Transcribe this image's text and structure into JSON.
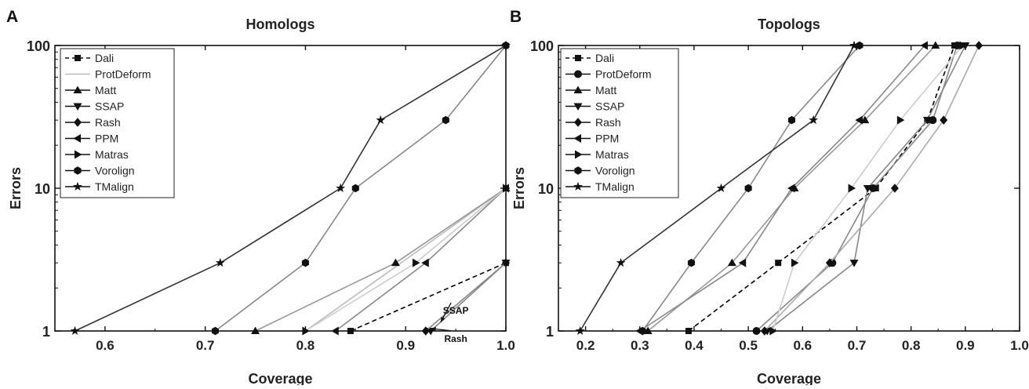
{
  "chart_data": [
    {
      "type": "line",
      "panel_label": "A",
      "title": "Homologs",
      "xlabel": "Coverage",
      "ylabel": "Errors",
      "xlim": [
        0.55,
        1.0
      ],
      "ylim": [
        1,
        100
      ],
      "yscale": "log",
      "xticks": [
        0.6,
        0.7,
        0.8,
        0.9,
        1.0
      ],
      "xtick_labels": [
        "0.6",
        "0.7",
        "0.8",
        "0.9",
        "1.0"
      ],
      "yticks": [
        1,
        10,
        100
      ],
      "ytick_labels": [
        "1",
        "10",
        "100"
      ],
      "grid": false,
      "legend_position": "top-left",
      "annotations": [
        {
          "text": "SSAP",
          "x": 0.95,
          "y": 1.32,
          "arrow_to": [
            0.935,
            1.15
          ]
        },
        {
          "text": "Rash",
          "x": 0.95,
          "y": 0.84,
          "arrow_to": [
            0.925,
            1.04
          ]
        }
      ],
      "series": [
        {
          "name": "Dali",
          "marker": "square",
          "dash": "dashed",
          "color": "#000000",
          "x": [
            0.845,
            1.0
          ],
          "y": [
            1,
            3
          ]
        },
        {
          "name": "ProtDeform",
          "marker": "none",
          "dash": "solid",
          "color": "#bbbbbb",
          "x": [
            0.8,
            1.0
          ],
          "y": [
            1,
            10
          ]
        },
        {
          "name": "Matt",
          "marker": "triangle-up",
          "dash": "solid",
          "color": "#999999",
          "x": [
            0.75,
            0.89,
            1.0
          ],
          "y": [
            1,
            3,
            10
          ]
        },
        {
          "name": "SSAP",
          "marker": "triangle-down",
          "dash": "solid",
          "color": "#888888",
          "x": [
            0.925,
            1.0
          ],
          "y": [
            1,
            3
          ]
        },
        {
          "name": "Rash",
          "marker": "diamond",
          "dash": "solid",
          "color": "#888888",
          "x": [
            0.92,
            1.0
          ],
          "y": [
            1,
            3
          ]
        },
        {
          "name": "PPM",
          "marker": "triangle-left",
          "dash": "solid",
          "color": "#888888",
          "x": [
            0.83,
            0.92,
            1.0
          ],
          "y": [
            1,
            3,
            10
          ]
        },
        {
          "name": "Matras",
          "marker": "triangle-right",
          "dash": "solid",
          "color": "#cccccc",
          "x": [
            0.8,
            0.91,
            1.0
          ],
          "y": [
            1,
            3,
            10
          ]
        },
        {
          "name": "Vorolign",
          "marker": "hexagon",
          "dash": "solid",
          "color": "#888888",
          "x": [
            0.71,
            0.8,
            0.85,
            0.94,
            1.0
          ],
          "y": [
            1,
            3,
            10,
            30,
            100
          ]
        },
        {
          "name": "TMalign",
          "marker": "star",
          "dash": "solid",
          "color": "#333333",
          "x": [
            0.57,
            0.715,
            0.835,
            0.875,
            1.0
          ],
          "y": [
            1,
            3,
            10,
            30,
            100
          ]
        }
      ]
    },
    {
      "type": "line",
      "panel_label": "B",
      "title": "Topologs",
      "xlabel": "Coverage",
      "ylabel": "Errors",
      "xlim": [
        0.15,
        1.0
      ],
      "ylim": [
        1,
        100
      ],
      "yscale": "log",
      "xticks": [
        0.2,
        0.3,
        0.4,
        0.5,
        0.6,
        0.7,
        0.8,
        0.9,
        1.0
      ],
      "xtick_labels": [
        "0.2",
        "0.3",
        "0.4",
        "0.5",
        "0.6",
        "0.7",
        "0.8",
        "0.9",
        "1.0"
      ],
      "yticks": [
        1,
        10,
        100
      ],
      "ytick_labels": [
        "1",
        "10",
        "100"
      ],
      "grid": false,
      "legend_position": "top-left",
      "series": [
        {
          "name": "Dali",
          "marker": "square",
          "dash": "dashed",
          "color": "#000000",
          "x": [
            0.39,
            0.555,
            0.735,
            0.83,
            0.88
          ],
          "y": [
            1,
            3,
            10,
            30,
            100
          ]
        },
        {
          "name": "ProtDeform",
          "marker": "circle",
          "dash": "solid",
          "color": "#888888",
          "x": [
            0.515,
            0.655,
            0.73,
            0.84,
            0.885
          ],
          "y": [
            1,
            3,
            10,
            30,
            100
          ]
        },
        {
          "name": "Matt",
          "marker": "triangle-up",
          "dash": "solid",
          "color": "#999999",
          "x": [
            0.315,
            0.47,
            0.585,
            0.715,
            0.845
          ],
          "y": [
            1,
            3,
            10,
            30,
            100
          ]
        },
        {
          "name": "SSAP",
          "marker": "triangle-down",
          "dash": "solid",
          "color": "#888888",
          "x": [
            0.535,
            0.695,
            0.72,
            0.83,
            0.9
          ],
          "y": [
            1,
            3,
            10,
            30,
            100
          ]
        },
        {
          "name": "Rash",
          "marker": "diamond",
          "dash": "solid",
          "color": "#aaaaaa",
          "x": [
            0.53,
            0.65,
            0.77,
            0.86,
            0.925
          ],
          "y": [
            1,
            3,
            10,
            30,
            100
          ]
        },
        {
          "name": "PPM",
          "marker": "triangle-left",
          "dash": "solid",
          "color": "#888888",
          "x": [
            0.3,
            0.49,
            0.58,
            0.705,
            0.825
          ],
          "y": [
            1,
            3,
            10,
            30,
            100
          ]
        },
        {
          "name": "Matras",
          "marker": "triangle-right",
          "dash": "solid",
          "color": "#cccccc",
          "x": [
            0.545,
            0.585,
            0.69,
            0.78,
            0.895
          ],
          "y": [
            1,
            3,
            10,
            30,
            100
          ]
        },
        {
          "name": "Vorolign",
          "marker": "hexagon",
          "dash": "solid",
          "color": "#888888",
          "x": [
            0.305,
            0.395,
            0.5,
            0.58,
            0.705
          ],
          "y": [
            1,
            3,
            10,
            30,
            100
          ]
        },
        {
          "name": "TMalign",
          "marker": "star",
          "dash": "solid",
          "color": "#333333",
          "x": [
            0.19,
            0.265,
            0.45,
            0.62,
            0.695
          ],
          "y": [
            1,
            3,
            10,
            30,
            100
          ]
        }
      ]
    }
  ]
}
